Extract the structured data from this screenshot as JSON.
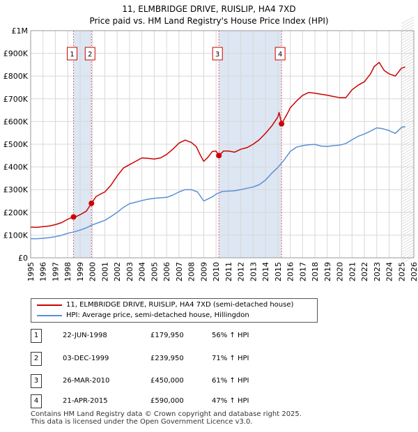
{
  "chart_data": {
    "type": "line",
    "title": "11, ELMBRIDGE DRIVE, RUISLIP, HA4 7XD",
    "subtitle": "Price paid vs. HM Land Registry's House Price Index (HPI)",
    "xlim": [
      1995,
      2026
    ],
    "ylim": [
      0,
      1000000
    ],
    "x_ticks": [
      "1995",
      "1996",
      "1997",
      "1998",
      "1999",
      "2000",
      "2001",
      "2002",
      "2003",
      "2004",
      "2005",
      "2006",
      "2007",
      "2008",
      "2009",
      "2010",
      "2011",
      "2012",
      "2013",
      "2014",
      "2015",
      "2016",
      "2017",
      "2018",
      "2019",
      "2020",
      "2021",
      "2022",
      "2023",
      "2024",
      "2025",
      "2026"
    ],
    "y_ticks": [
      {
        "value": 0,
        "label": "£0"
      },
      {
        "value": 100000,
        "label": "£100K"
      },
      {
        "value": 200000,
        "label": "£200K"
      },
      {
        "value": 300000,
        "label": "£300K"
      },
      {
        "value": 400000,
        "label": "£400K"
      },
      {
        "value": 500000,
        "label": "£500K"
      },
      {
        "value": 600000,
        "label": "£600K"
      },
      {
        "value": 700000,
        "label": "£700K"
      },
      {
        "value": 800000,
        "label": "£800K"
      },
      {
        "value": 900000,
        "label": "£900K"
      },
      {
        "value": 1000000,
        "label": "£1M"
      }
    ],
    "shaded_periods": [
      [
        1998.47,
        1999.92
      ],
      [
        2010.23,
        2015.3
      ]
    ],
    "forecast_start": 2025.0,
    "series": [
      {
        "name": "11, ELMBRIDGE DRIVE, RUISLIP, HA4 7XD (semi-detached house)",
        "color": "#cc0000",
        "x": [
          1995.0,
          1995.5,
          1996.0,
          1996.5,
          1997.0,
          1997.5,
          1998.0,
          1998.47,
          1998.7,
          1999.0,
          1999.5,
          1999.92,
          2000.3,
          2000.7,
          2001.0,
          2001.5,
          2002.0,
          2002.5,
          2003.0,
          2003.5,
          2004.0,
          2004.5,
          2005.0,
          2005.5,
          2006.0,
          2006.5,
          2007.0,
          2007.5,
          2008.0,
          2008.4,
          2008.7,
          2009.0,
          2009.3,
          2009.7,
          2010.0,
          2010.23,
          2010.6,
          2011.0,
          2011.5,
          2012.0,
          2012.5,
          2013.0,
          2013.5,
          2014.0,
          2014.5,
          2015.0,
          2015.1,
          2015.3,
          2015.7,
          2016.0,
          2016.5,
          2017.0,
          2017.5,
          2018.0,
          2018.5,
          2019.0,
          2019.5,
          2020.0,
          2020.5,
          2021.0,
          2021.5,
          2022.0,
          2022.5,
          2022.8,
          2023.2,
          2023.6,
          2024.0,
          2024.5,
          2025.0,
          2025.3
        ],
        "y": [
          135000,
          134000,
          137000,
          140000,
          146000,
          155000,
          170000,
          179950,
          182000,
          190000,
          205000,
          239950,
          270000,
          282000,
          290000,
          320000,
          360000,
          395000,
          410000,
          425000,
          440000,
          438000,
          435000,
          440000,
          455000,
          478000,
          505000,
          518000,
          508000,
          490000,
          455000,
          425000,
          440000,
          468000,
          470000,
          450000,
          470000,
          470000,
          465000,
          478000,
          485000,
          500000,
          520000,
          548000,
          580000,
          620000,
          640000,
          590000,
          628000,
          660000,
          690000,
          715000,
          728000,
          725000,
          720000,
          716000,
          710000,
          705000,
          705000,
          740000,
          760000,
          775000,
          810000,
          842000,
          860000,
          825000,
          810000,
          800000,
          835000,
          840000
        ]
      },
      {
        "name": "HPI: Average price, semi-detached house, Hillingdon",
        "color": "#5b8fd4",
        "x": [
          1995.0,
          1995.5,
          1996.0,
          1996.5,
          1997.0,
          1997.5,
          1998.0,
          1998.5,
          1999.0,
          1999.5,
          2000.0,
          2000.5,
          2001.0,
          2001.5,
          2002.0,
          2002.5,
          2003.0,
          2003.5,
          2004.0,
          2004.5,
          2005.0,
          2005.5,
          2006.0,
          2006.5,
          2007.0,
          2007.5,
          2008.0,
          2008.5,
          2009.0,
          2009.3,
          2009.7,
          2010.0,
          2010.5,
          2011.0,
          2011.5,
          2012.0,
          2012.5,
          2013.0,
          2013.5,
          2014.0,
          2014.5,
          2015.0,
          2015.5,
          2016.0,
          2016.5,
          2017.0,
          2017.5,
          2018.0,
          2018.5,
          2019.0,
          2019.5,
          2020.0,
          2020.5,
          2021.0,
          2021.5,
          2022.0,
          2022.5,
          2023.0,
          2023.5,
          2024.0,
          2024.5,
          2025.0,
          2025.3
        ],
        "y": [
          84000,
          84000,
          86000,
          89000,
          93000,
          99000,
          108000,
          114000,
          122000,
          132000,
          145000,
          155000,
          165000,
          182000,
          200000,
          222000,
          238000,
          245000,
          252000,
          258000,
          262000,
          264000,
          266000,
          276000,
          290000,
          300000,
          300000,
          290000,
          250000,
          258000,
          268000,
          280000,
          292000,
          294000,
          295000,
          300000,
          306000,
          312000,
          322000,
          342000,
          372000,
          398000,
          430000,
          468000,
          487000,
          494000,
          498000,
          499000,
          492000,
          490000,
          494000,
          496000,
          503000,
          520000,
          535000,
          545000,
          558000,
          572000,
          568000,
          560000,
          548000,
          574000,
          578000
        ]
      }
    ],
    "transactions": [
      {
        "num": "1",
        "x": 1998.47,
        "y": 179950
      },
      {
        "num": "2",
        "x": 1999.92,
        "y": 239950
      },
      {
        "num": "3",
        "x": 2010.23,
        "y": 450000
      },
      {
        "num": "4",
        "x": 2015.3,
        "y": 590000
      }
    ]
  },
  "legend": {
    "property_label": "11, ELMBRIDGE DRIVE, RUISLIP, HA4 7XD (semi-detached house)",
    "hpi_label": "HPI: Average price, semi-detached house, Hillingdon"
  },
  "table": [
    {
      "num": "1",
      "date": "22-JUN-1998",
      "price": "£179,950",
      "hpi": "56% ↑ HPI"
    },
    {
      "num": "2",
      "date": "03-DEC-1999",
      "price": "£239,950",
      "hpi": "71% ↑ HPI"
    },
    {
      "num": "3",
      "date": "26-MAR-2010",
      "price": "£450,000",
      "hpi": "61% ↑ HPI"
    },
    {
      "num": "4",
      "date": "21-APR-2015",
      "price": "£590,000",
      "hpi": "47% ↑ HPI"
    }
  ],
  "footer": {
    "line1": "Contains HM Land Registry data © Crown copyright and database right 2025.",
    "line2": "This data is licensed under the Open Government Licence v3.0."
  }
}
